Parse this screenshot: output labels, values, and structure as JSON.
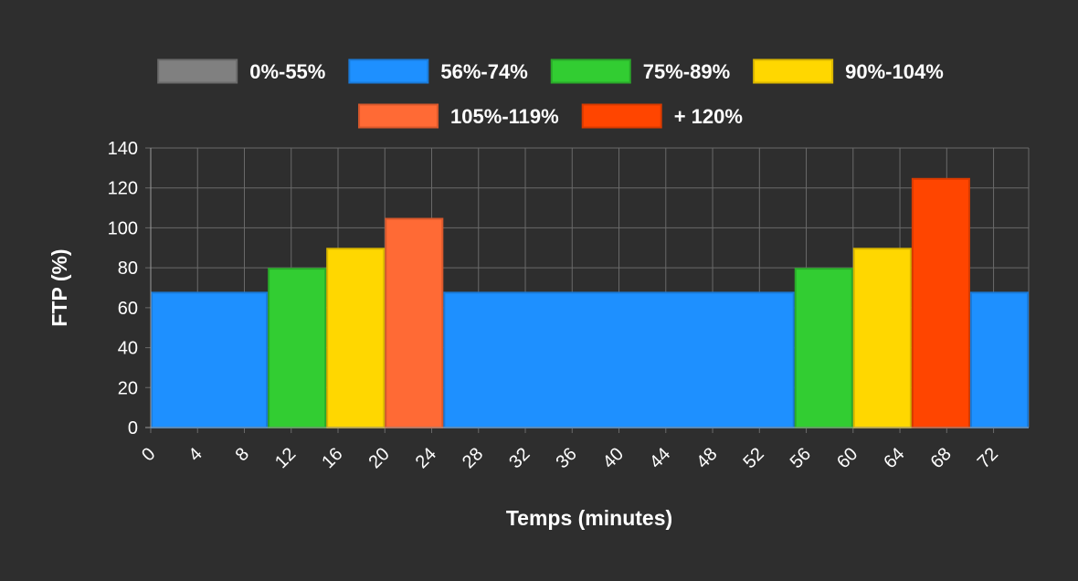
{
  "chart_data": {
    "type": "bar",
    "title": "",
    "xlabel": "Temps (minutes)",
    "ylabel": "FTP (%)",
    "xlim": [
      0,
      75
    ],
    "ylim": [
      0,
      140
    ],
    "x_ticks": [
      0,
      4,
      8,
      12,
      16,
      20,
      24,
      28,
      32,
      36,
      40,
      44,
      48,
      52,
      56,
      60,
      64,
      68,
      72
    ],
    "y_ticks": [
      0,
      20,
      40,
      60,
      80,
      100,
      120,
      140
    ],
    "grid": true,
    "legend_position": "top",
    "zones": [
      {
        "label": "0%-55%",
        "color": "#808080",
        "border": "#6b6b6b"
      },
      {
        "label": "56%-74%",
        "color": "#1e90ff",
        "border": "#1a7ad8"
      },
      {
        "label": "75%-89%",
        "color": "#32cd32",
        "border": "#2aa82a"
      },
      {
        "label": "90%-104%",
        "color": "#ffd700",
        "border": "#d9b600"
      },
      {
        "label": "105%-119%",
        "color": "#ff6a35",
        "border": "#d8582c"
      },
      {
        "label": "+ 120%",
        "color": "#ff4500",
        "border": "#d83a00"
      }
    ],
    "segments": [
      {
        "start": 0,
        "end": 10,
        "ftp": 68,
        "zone": 1
      },
      {
        "start": 10,
        "end": 15,
        "ftp": 80,
        "zone": 2
      },
      {
        "start": 15,
        "end": 20,
        "ftp": 90,
        "zone": 3
      },
      {
        "start": 20,
        "end": 25,
        "ftp": 105,
        "zone": 4
      },
      {
        "start": 25,
        "end": 55,
        "ftp": 68,
        "zone": 1
      },
      {
        "start": 55,
        "end": 60,
        "ftp": 80,
        "zone": 2
      },
      {
        "start": 60,
        "end": 65,
        "ftp": 90,
        "zone": 3
      },
      {
        "start": 65,
        "end": 70,
        "ftp": 125,
        "zone": 5
      },
      {
        "start": 70,
        "end": 75,
        "ftp": 68,
        "zone": 1
      }
    ]
  }
}
